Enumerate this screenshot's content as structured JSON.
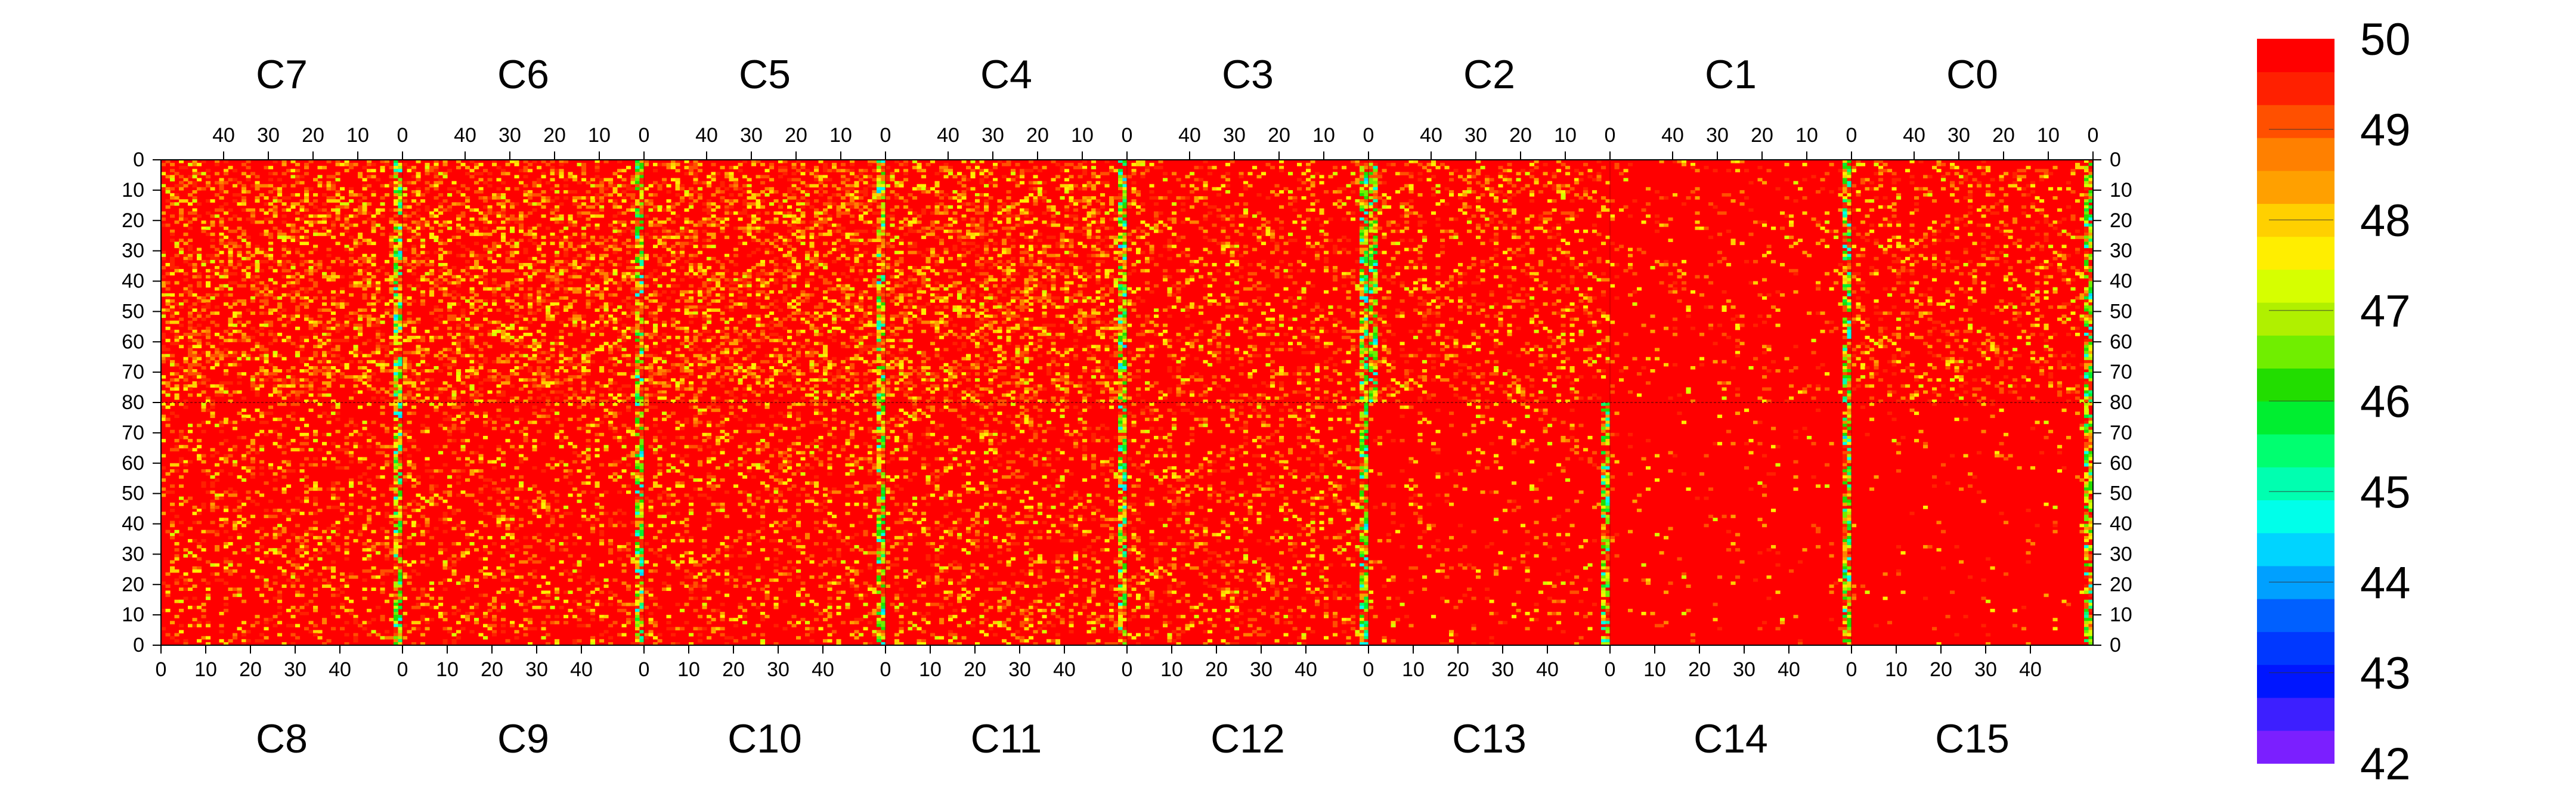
{
  "chart_data": {
    "type": "heatmap",
    "top_chip_labels": [
      "C7",
      "C6",
      "C5",
      "C4",
      "C3",
      "C2",
      "C1",
      "C0"
    ],
    "bottom_chip_labels": [
      "C8",
      "C9",
      "C10",
      "C11",
      "C12",
      "C13",
      "C14",
      "C15"
    ],
    "x_range": [
      0,
      53
    ],
    "x_tick_values": [
      0,
      10,
      20,
      30,
      40
    ],
    "x_tick_labels": [
      "0",
      "10",
      "20",
      "30",
      "40"
    ],
    "top_x_reversed": true,
    "y_range_top_half": [
      0,
      80
    ],
    "y_range_bottom_half": [
      0,
      80
    ],
    "top_half_y_reversed": true,
    "y_tick_labels_top": [
      "0",
      "10",
      "20",
      "30",
      "40",
      "50",
      "60",
      "70",
      "80"
    ],
    "y_tick_labels_bottom": [
      "70",
      "60",
      "50",
      "40",
      "30",
      "20",
      "10",
      "0"
    ],
    "color_scale": {
      "min": 42,
      "max": 50,
      "tick_labels": [
        "50",
        "49",
        "48",
        "47",
        "46",
        "45",
        "44",
        "43",
        "42"
      ],
      "colors": [
        "#7b1fff",
        "#3d1fff",
        "#0016ff",
        "#0038ff",
        "#0060ff",
        "#00a0ff",
        "#00d4ff",
        "#00ffea",
        "#00ffb0",
        "#00ff70",
        "#00ee30",
        "#22dd00",
        "#70ee00",
        "#b0f000",
        "#d6ff00",
        "#ffee00",
        "#ffd000",
        "#ffa000",
        "#ff8000",
        "#ff5000",
        "#ff2000",
        "#ff0000"
      ]
    },
    "chip_profiles": {
      "top": [
        {
          "chip": "C7",
          "low_value_columns_near_x": 0,
          "noise": "high"
        },
        {
          "chip": "C6",
          "low_value_columns_near_x": 0,
          "noise": "high"
        },
        {
          "chip": "C5",
          "low_value_columns_near_x": 0,
          "noise": "high"
        },
        {
          "chip": "C4",
          "low_value_columns_near_x": 0,
          "noise": "high"
        },
        {
          "chip": "C3",
          "low_value_columns_near_x": 0,
          "noise": "medium"
        },
        {
          "chip": "C2",
          "low_value_columns_near_x": 53,
          "noise": "medium"
        },
        {
          "chip": "C1",
          "low_value_columns_near_x": 0,
          "noise": "low"
        },
        {
          "chip": "C0",
          "low_value_columns_near_x": 0,
          "noise": "medium"
        }
      ],
      "bottom": [
        {
          "chip": "C8",
          "low_value_columns_near_x": 53,
          "noise": "medium"
        },
        {
          "chip": "C9",
          "low_value_columns_near_x": 53,
          "noise": "medium"
        },
        {
          "chip": "C10",
          "low_value_columns_near_x": 53,
          "noise": "medium"
        },
        {
          "chip": "C11",
          "low_value_columns_near_x": 53,
          "noise": "medium"
        },
        {
          "chip": "C12",
          "low_value_columns_near_x": 53,
          "noise": "medium"
        },
        {
          "chip": "C13",
          "low_value_columns_near_x": 53,
          "noise": "low"
        },
        {
          "chip": "C14",
          "low_value_columns_near_x": 53,
          "noise": "very_low"
        },
        {
          "chip": "C15",
          "low_value_columns_near_x": 53,
          "noise": "very_low"
        }
      ]
    }
  }
}
